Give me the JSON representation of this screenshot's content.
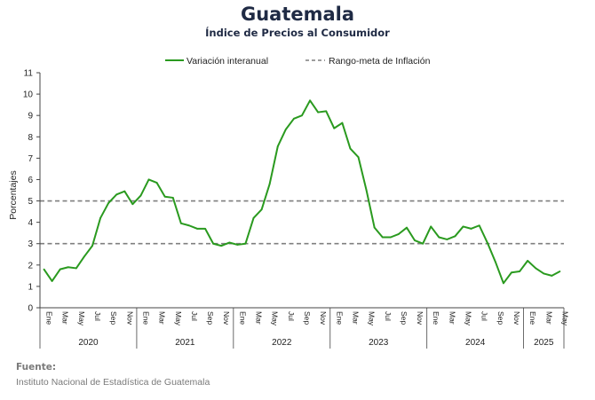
{
  "title": "Guatemala",
  "subtitle": "Índice de Precios al Consumidor",
  "source_label": "Fuente:",
  "source_text": "Instituto Nacional de Estadística de Guatemala",
  "colors": {
    "series": "#2a9a1f",
    "target": "#7f7f7f",
    "axis": "#444444"
  },
  "chart_data": {
    "type": "line",
    "ylabel": "Porcentajes",
    "ylim": [
      0,
      11
    ],
    "yticks": [
      0,
      1,
      2,
      3,
      4,
      5,
      6,
      7,
      8,
      9,
      10,
      11
    ],
    "grid": false,
    "legend_position": "top",
    "month_labels": [
      "Ene",
      "Mar",
      "May",
      "Jul",
      "Sep",
      "Nov"
    ],
    "years": [
      "2020",
      "2021",
      "2022",
      "2023",
      "2024",
      "2025"
    ],
    "series": [
      {
        "name": "Variación interanual",
        "start": "2020-01",
        "end": "2025-05",
        "values": [
          1.8,
          1.25,
          1.8,
          1.9,
          1.85,
          2.4,
          2.9,
          4.2,
          4.9,
          5.3,
          5.45,
          4.85,
          5.25,
          6.0,
          5.85,
          5.2,
          5.15,
          3.95,
          3.85,
          3.7,
          3.7,
          3.0,
          2.9,
          3.05,
          2.95,
          3.0,
          4.2,
          4.6,
          5.8,
          7.55,
          8.35,
          8.85,
          9.0,
          9.7,
          9.15,
          9.2,
          8.4,
          8.65,
          7.45,
          7.05,
          5.5,
          3.75,
          3.3,
          3.3,
          3.45,
          3.75,
          3.15,
          3.0,
          3.8,
          3.3,
          3.2,
          3.35,
          3.8,
          3.7,
          3.85,
          3.05,
          2.15,
          1.15,
          1.65,
          1.7,
          2.2,
          1.85,
          1.6,
          1.5,
          1.7
        ]
      }
    ],
    "target_band": {
      "name": "Rango-meta de Inflación",
      "lower": 3,
      "upper": 5
    }
  }
}
